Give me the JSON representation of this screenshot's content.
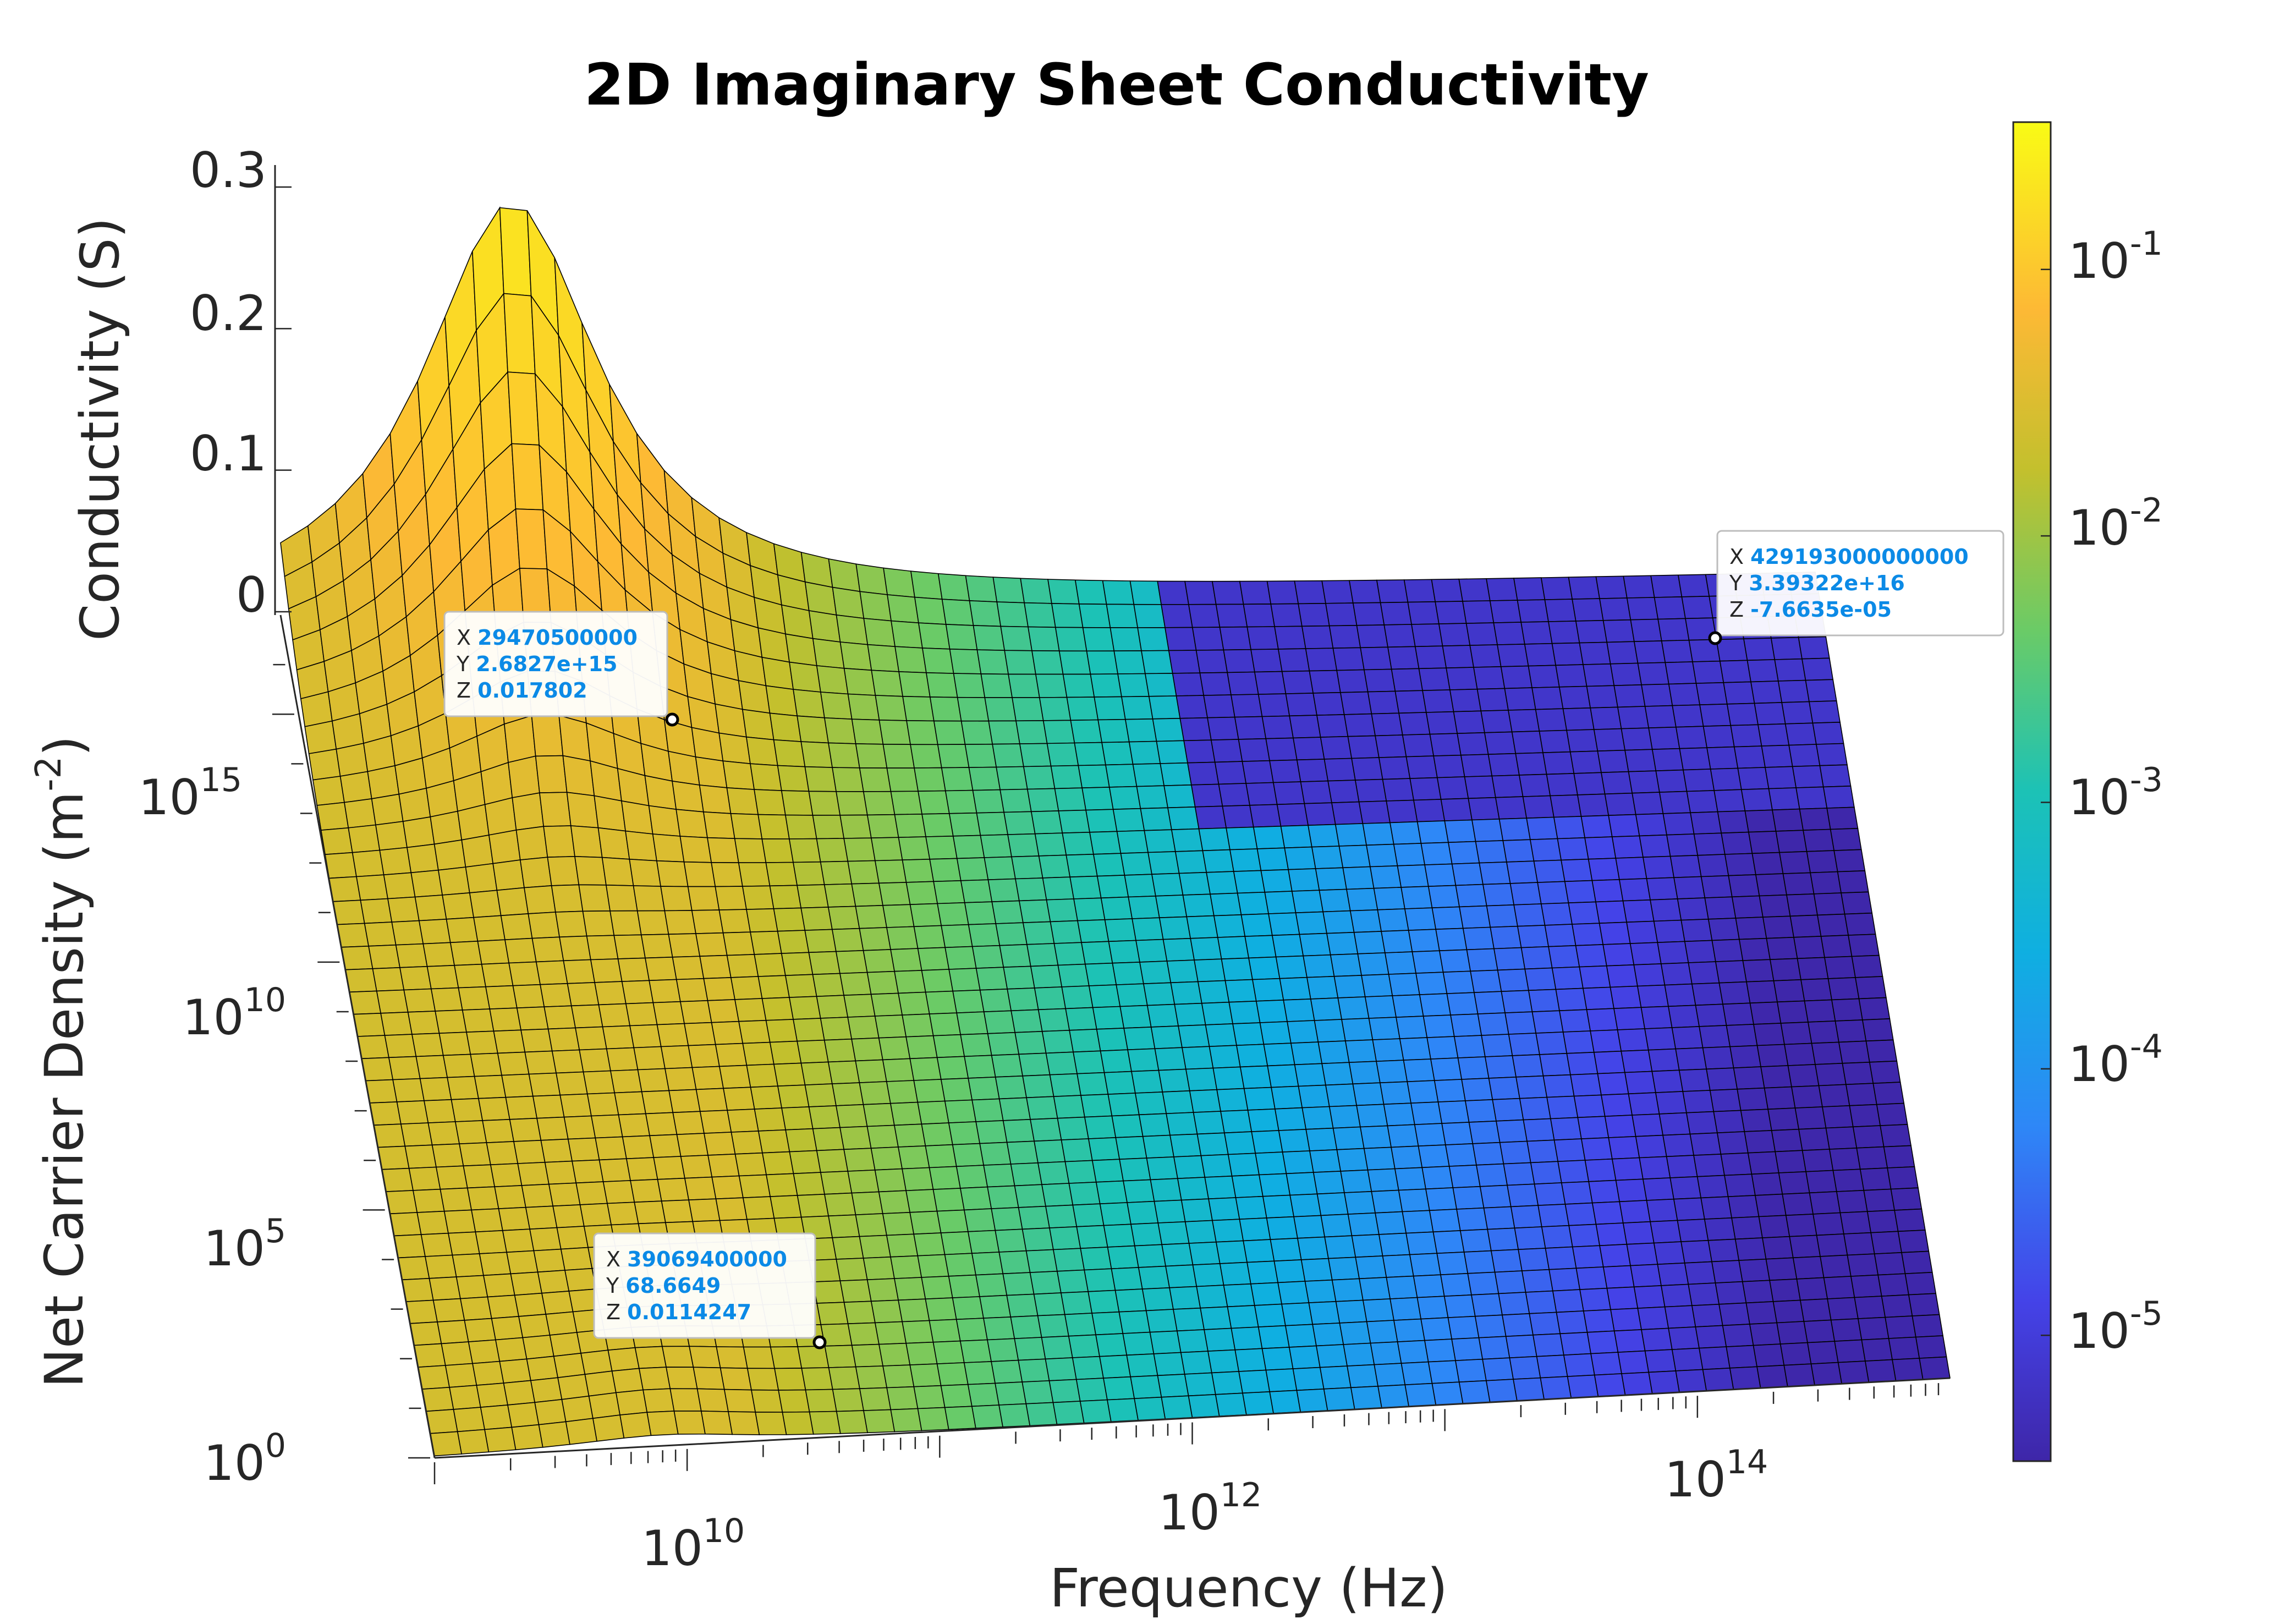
{
  "chart_data": {
    "type": "surface",
    "title": "2D Imaginary Sheet Conductivity",
    "xlabel": "Frequency (Hz)",
    "ylabel": "Net Carrier Density (m^-2)",
    "zlabel": "Conductivity (S)",
    "x_scale": "log",
    "y_scale": "log",
    "x_range": [
      1000000000,
      1000000000000000
    ],
    "y_range": [
      1,
      100000000000000000
    ],
    "z_range": [
      0,
      0.3
    ],
    "x_ticks": [
      {
        "base": "10",
        "exp": "10"
      },
      {
        "base": "10",
        "exp": "12"
      },
      {
        "base": "10",
        "exp": "14"
      }
    ],
    "y_ticks": [
      {
        "base": "10",
        "exp": "0"
      },
      {
        "base": "10",
        "exp": "5"
      },
      {
        "base": "10",
        "exp": "10"
      },
      {
        "base": "10",
        "exp": "15"
      }
    ],
    "z_ticks": [
      "0",
      "0.1",
      "0.2",
      "0.3"
    ],
    "colorbar": {
      "scale": "log",
      "colormap": "parula",
      "range": [
        3e-06,
        0.3
      ],
      "ticks": [
        {
          "base": "10",
          "exp": "-1"
        },
        {
          "base": "10",
          "exp": "-2"
        },
        {
          "base": "10",
          "exp": "-3"
        },
        {
          "base": "10",
          "exp": "-4"
        },
        {
          "base": "10",
          "exp": "-5"
        }
      ]
    },
    "peak": {
      "x": 8000000000,
      "z": 0.29
    },
    "datatips": [
      {
        "X": "29470500000",
        "Y": "2.6827e+15",
        "Z": "0.017802"
      },
      {
        "X": "39069400000",
        "Y": "68.6649",
        "Z": "0.0114247"
      },
      {
        "X": "429193000000000",
        "Y": "3.39322e+16",
        "Z": "-7.6635e-05"
      }
    ],
    "grid": "on",
    "mesh_edges": "black"
  }
}
